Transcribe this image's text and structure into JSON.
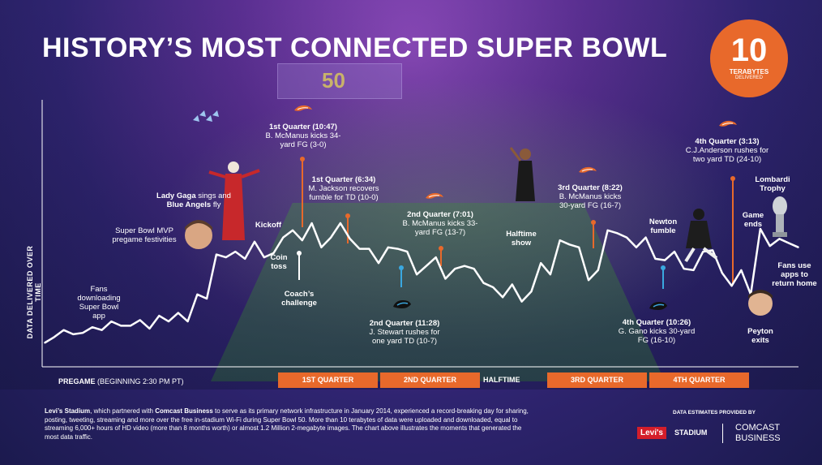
{
  "title": "HISTORY’S MOST CONNECTED SUPER BOWL",
  "badge": {
    "value": "10",
    "unit": "TERABYTES",
    "sub": "DELIVERED"
  },
  "scoreboard_label": "50",
  "y_axis_label": "DATA DELIVERED OVER TIME",
  "colors": {
    "accent": "#e8692b",
    "line": "#ffffff",
    "marker_orange": "#e8692b",
    "marker_blue": "#3aa8e0",
    "background": "#2f2470"
  },
  "chart_data": {
    "type": "line",
    "title": "HISTORY’S MOST CONNECTED SUPER BOWL",
    "ylabel": "DATA DELIVERED OVER TIME",
    "xlabel": "",
    "series": [
      {
        "values": [
          6,
          10,
          15,
          12,
          13,
          17,
          15,
          21,
          18,
          18,
          22,
          16,
          25,
          21,
          27,
          21,
          40,
          37,
          68,
          66,
          70,
          65,
          77,
          66,
          69,
          80,
          85,
          78,
          90,
          73,
          80,
          90,
          79,
          72,
          72,
          62,
          73,
          72,
          70,
          54,
          60,
          66,
          51,
          58,
          60,
          58,
          48,
          45,
          38,
          47,
          35,
          42,
          62,
          54,
          78,
          75,
          73,
          50,
          57,
          85,
          83,
          80,
          73,
          80,
          65,
          64,
          70,
          58,
          57,
          70,
          71,
          55,
          46,
          57,
          40,
          86,
          74,
          79,
          76,
          73
        ]
      }
    ],
    "segments": [
      "PREGAME",
      "1ST QUARTER",
      "2ND QUARTER",
      "HALFTIME",
      "3RD QUARTER",
      "4TH QUARTER"
    ]
  },
  "annotations": {
    "fans": "Fans downloading Super Bowl app",
    "mvp": "Super Bowl MVP pregame festivities",
    "gaga_1": "Lady Gaga",
    "gaga_2": " sings and ",
    "gaga_3": "Blue Angels",
    "gaga_4": " fly",
    "kickoff": "Kickoff",
    "coin": "Coin toss",
    "coach": "Coach’s challenge",
    "q1a_h": "1st Quarter (10:47)",
    "q1a_t": "B. McManus kicks 34-yard FG (3-0)",
    "q1b_h": "1st Quarter (6:34)",
    "q1b_t": "M. Jackson recovers fumble for TD (10-0)",
    "q2a_h": "2nd Quarter (7:01)",
    "q2a_t": "B. McManus kicks 33-yard FG (13-7)",
    "q2b_h": "2nd Quarter (11:28)",
    "q2b_t": "J. Stewart rushes for one yard TD (10-7)",
    "halftime": "Halftime show",
    "q3_h": "3rd Quarter (8:22)",
    "q3_t": "B. McManus kicks 30-yard FG (16-7)",
    "newton": "Newton fumble",
    "q4a_h": "4th Quarter (3:13)",
    "q4a_t": "C.J.Anderson rushes for two yard TD (24-10)",
    "q4b_h": "4th Quarter (10:26)",
    "q4b_t": "G. Gano kicks 30-yard FG (16-10)",
    "lombardi": "Lombardi Trophy",
    "game_ends": "Game ends",
    "peyton": "Peyton exits",
    "fans_apps": "Fans use apps to return home"
  },
  "timeline": {
    "pregame_bold": "PREGAME",
    "pregame_rest": " (BEGINNING 2:30 PM PT)",
    "q1": "1ST QUARTER",
    "q2": "2ND QUARTER",
    "halftime": "HALFTIME",
    "q3": "3RD QUARTER",
    "q4": "4TH QUARTER"
  },
  "footer": {
    "b1": "Levi’s Stadium",
    "t1": ", which partnered with ",
    "b2": "Comcast Business",
    "t2": " to serve as its primary network infrastructure in January 2014, experienced a record-breaking day for sharing, posting, tweeting, streaming and more over the free in-stadium Wi-Fi during Super Bowl 50. More than 10 terabytes of data were uploaded and downloaded, equal to streaming 6,000+ hours of HD video (more than 8 months worth) or almost 1.2 Million 2-megabyte images. The chart above illustrates the moments that generated the most data traffic."
  },
  "sponsors": {
    "estimates": "DATA ESTIMATES PROVIDED BY",
    "levis": "Levi's",
    "stadium": "STADIUM",
    "comcast1": "COMCAST",
    "comcast2": "BUSINESS"
  },
  "icons": [
    "broncos-logo-icon",
    "panthers-logo-icon",
    "blue-angels-jets-icon",
    "lombardi-trophy-icon"
  ]
}
